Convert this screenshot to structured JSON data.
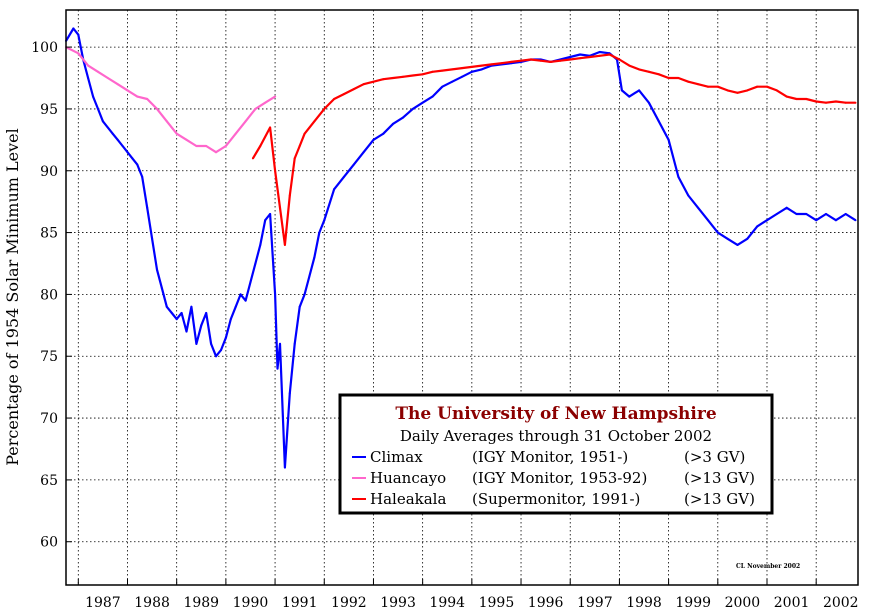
{
  "chart_data": {
    "type": "line",
    "title": "The University of New Hampshire",
    "subtitle": "Daily Averages through 31 October 2002",
    "ylabel": "Percentage of 1954 Solar Minimum Level",
    "xlabel": "",
    "xlim": [
      1986.75,
      2002.85
    ],
    "ylim": [
      56.5,
      103
    ],
    "yticks": [
      60,
      65,
      70,
      75,
      80,
      85,
      90,
      95,
      100
    ],
    "xtick_labels": [
      "1987",
      "1988",
      "1989",
      "1990",
      "1991",
      "1992",
      "1993",
      "1994",
      "1995",
      "1996",
      "1997",
      "1998",
      "1999",
      "2000",
      "2001",
      "2002"
    ],
    "grid": true,
    "legend_position": "lower-center",
    "credit": "CL November 2002",
    "series": [
      {
        "name": "Climax",
        "desc": "(IGY Monitor, 1951-)",
        "cutoff": "(>3 GV)",
        "color": "#0000ff",
        "x": [
          1986.75,
          1986.9,
          1987.0,
          1987.1,
          1987.2,
          1987.3,
          1987.4,
          1987.5,
          1987.6,
          1987.7,
          1987.8,
          1987.9,
          1988.0,
          1988.1,
          1988.2,
          1988.3,
          1988.4,
          1988.5,
          1988.6,
          1988.7,
          1988.8,
          1988.9,
          1989.0,
          1989.1,
          1989.2,
          1989.3,
          1989.4,
          1989.5,
          1989.6,
          1989.7,
          1989.8,
          1989.9,
          1990.0,
          1990.1,
          1990.2,
          1990.3,
          1990.4,
          1990.5,
          1990.6,
          1990.7,
          1990.8,
          1990.9,
          1991.0,
          1991.05,
          1991.1,
          1991.2,
          1991.3,
          1991.4,
          1991.5,
          1991.6,
          1991.7,
          1991.8,
          1991.9,
          1992.0,
          1992.2,
          1992.4,
          1992.6,
          1992.8,
          1993.0,
          1993.2,
          1993.4,
          1993.6,
          1993.8,
          1994.0,
          1994.2,
          1994.4,
          1994.6,
          1994.8,
          1995.0,
          1995.2,
          1995.4,
          1995.6,
          1995.8,
          1996.0,
          1996.2,
          1996.4,
          1996.6,
          1996.8,
          1997.0,
          1997.2,
          1997.4,
          1997.6,
          1997.8,
          1997.95,
          1998.05,
          1998.2,
          1998.4,
          1998.6,
          1998.8,
          1999.0,
          1999.2,
          1999.4,
          1999.6,
          1999.8,
          2000.0,
          2000.2,
          2000.4,
          2000.6,
          2000.8,
          2001.0,
          2001.2,
          2001.4,
          2001.6,
          2001.8,
          2002.0,
          2002.2,
          2002.4,
          2002.6,
          2002.8
        ],
        "y": [
          100.5,
          101.5,
          101.0,
          99.0,
          97.5,
          96.0,
          95.0,
          94.0,
          93.5,
          93.0,
          92.5,
          92.0,
          91.5,
          91.0,
          90.5,
          89.5,
          87.0,
          84.5,
          82.0,
          80.5,
          79.0,
          78.5,
          78.0,
          78.5,
          77.0,
          79.0,
          76.0,
          77.5,
          78.5,
          76.0,
          75.0,
          75.5,
          76.5,
          78.0,
          79.0,
          80.0,
          79.5,
          81.0,
          82.5,
          84.0,
          86.0,
          86.5,
          80.0,
          74.0,
          76.0,
          66.0,
          72.0,
          76.0,
          79.0,
          80.0,
          81.5,
          83.0,
          85.0,
          86.0,
          88.5,
          89.5,
          90.5,
          91.5,
          92.5,
          93.0,
          93.8,
          94.3,
          95.0,
          95.5,
          96.0,
          96.8,
          97.2,
          97.6,
          98.0,
          98.2,
          98.5,
          98.6,
          98.7,
          98.8,
          99.0,
          99.0,
          98.8,
          99.0,
          99.2,
          99.4,
          99.3,
          99.6,
          99.5,
          99.0,
          96.5,
          96.0,
          96.5,
          95.5,
          94.0,
          92.5,
          89.5,
          88.0,
          87.0,
          86.0,
          85.0,
          84.5,
          84.0,
          84.5,
          85.5,
          86.0,
          86.5,
          87.0,
          86.5,
          86.5,
          86.0,
          86.5,
          86.0,
          86.5,
          86.0
        ]
      },
      {
        "name": "Huancayo",
        "desc": "(IGY Monitor, 1953-92)",
        "cutoff": "(>13 GV)",
        "color": "#ff66cc",
        "x": [
          1986.75,
          1987.0,
          1987.2,
          1987.4,
          1987.6,
          1987.8,
          1988.0,
          1988.2,
          1988.4,
          1988.6,
          1988.8,
          1989.0,
          1989.2,
          1989.4,
          1989.6,
          1989.8,
          1990.0,
          1990.2,
          1990.4,
          1990.6,
          1990.8,
          1991.0
        ],
        "y": [
          100.0,
          99.5,
          98.5,
          98.0,
          97.5,
          97.0,
          96.5,
          96.0,
          95.8,
          95.0,
          94.0,
          93.0,
          92.5,
          92.0,
          92.0,
          91.5,
          92.0,
          93.0,
          94.0,
          95.0,
          95.5,
          96.0
        ]
      },
      {
        "name": "Haleakala",
        "desc": "(Supermonitor, 1991-)",
        "cutoff": "(>13 GV)",
        "color": "#ff0000",
        "x": [
          1990.55,
          1990.7,
          1990.9,
          1991.0,
          1991.1,
          1991.2,
          1991.3,
          1991.4,
          1991.5,
          1991.6,
          1991.8,
          1992.0,
          1992.2,
          1992.4,
          1992.6,
          1992.8,
          1993.0,
          1993.2,
          1993.4,
          1993.6,
          1993.8,
          1994.0,
          1994.2,
          1994.4,
          1994.6,
          1994.8,
          1995.0,
          1995.2,
          1995.4,
          1995.6,
          1995.8,
          1996.0,
          1996.2,
          1996.4,
          1996.6,
          1996.8,
          1997.0,
          1997.2,
          1997.4,
          1997.6,
          1997.8,
          1998.0,
          1998.2,
          1998.4,
          1998.6,
          1998.8,
          1999.0,
          1999.2,
          1999.4,
          1999.6,
          1999.8,
          2000.0,
          2000.2,
          2000.4,
          2000.6,
          2000.8,
          2001.0,
          2001.2,
          2001.4,
          2001.6,
          2001.8,
          2002.0,
          2002.2,
          2002.4,
          2002.6,
          2002.8
        ],
        "y": [
          91.0,
          92.0,
          93.5,
          90.0,
          87.0,
          84.0,
          88.0,
          91.0,
          92.0,
          93.0,
          94.0,
          95.0,
          95.8,
          96.2,
          96.6,
          97.0,
          97.2,
          97.4,
          97.5,
          97.6,
          97.7,
          97.8,
          98.0,
          98.1,
          98.2,
          98.3,
          98.4,
          98.5,
          98.6,
          98.7,
          98.8,
          98.9,
          99.0,
          98.9,
          98.8,
          98.9,
          99.0,
          99.1,
          99.2,
          99.3,
          99.4,
          99.0,
          98.5,
          98.2,
          98.0,
          97.8,
          97.5,
          97.5,
          97.2,
          97.0,
          96.8,
          96.8,
          96.5,
          96.3,
          96.5,
          96.8,
          96.8,
          96.5,
          96.0,
          95.8,
          95.8,
          95.6,
          95.5,
          95.6,
          95.5,
          95.5
        ]
      }
    ]
  }
}
